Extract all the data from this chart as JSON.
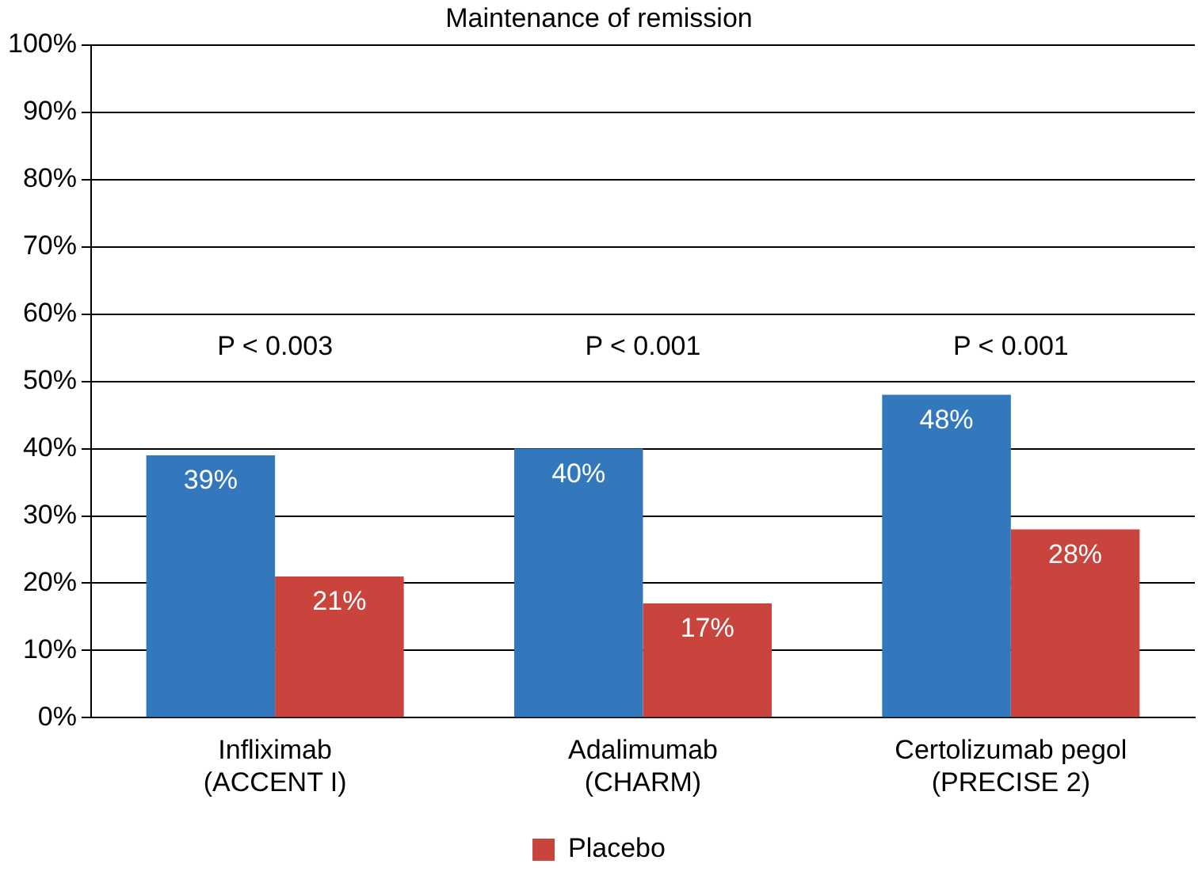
{
  "chart_data": {
    "type": "bar",
    "title": "Maintenance of remission",
    "categories": [
      "Infliximab\n(ACCENT I)",
      "Adalimumab\n(CHARM)",
      "Certolizumab pegol\n(PRECISE 2)"
    ],
    "series": [
      {
        "color": "#3378bd",
        "values": [
          39,
          40,
          48
        ],
        "value_labels": [
          "39%",
          "40%",
          "48%"
        ]
      },
      {
        "name": "Placebo",
        "color": "#c8443c",
        "values": [
          21,
          17,
          28
        ],
        "value_labels": [
          "21%",
          "17%",
          "28%"
        ]
      }
    ],
    "ylim": [
      0,
      100
    ],
    "yticks": [
      {
        "value": 0,
        "label": "0%"
      },
      {
        "value": 10,
        "label": "10%"
      },
      {
        "value": 20,
        "label": "20%"
      },
      {
        "value": 30,
        "label": "30%"
      },
      {
        "value": 40,
        "label": "40%"
      },
      {
        "value": 50,
        "label": "50%"
      },
      {
        "value": 60,
        "label": "60%"
      },
      {
        "value": 70,
        "label": "70%"
      },
      {
        "value": 80,
        "label": "80%"
      },
      {
        "value": 90,
        "label": "90%"
      },
      {
        "value": 100,
        "label": "100%"
      }
    ],
    "grid": "y",
    "legend": "bottom",
    "annotations": [
      "P < 0.003",
      "P < 0.001",
      "P < 0.001"
    ]
  }
}
